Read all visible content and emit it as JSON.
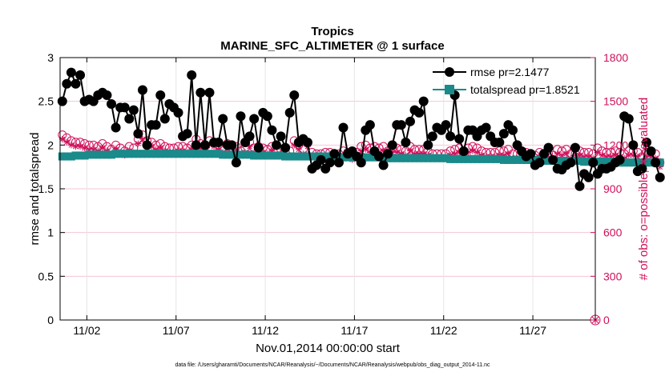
{
  "chart_data": {
    "type": "line",
    "title": "Tropics",
    "subtitle": "MARINE_SFC_ALTIMETER @ 1 surface",
    "xlabel": "Nov.01,2014 00:00:00 start",
    "ylabel": "rmse and totalspread",
    "y2label": "# of obs: o=possible; ∗=evaluated",
    "footer": "data file: /Users/gharamti/Documents/NCAR/Reanalysis/~/Documents/NCAR/Reanalysis/webpub/obs_diag_output_2014-11.nc",
    "xlim": [
      0.5,
      30.5
    ],
    "ylim": [
      0,
      3
    ],
    "y2lim": [
      0,
      1800
    ],
    "xticks": [
      2,
      7,
      12,
      17,
      22,
      27
    ],
    "xtick_labels": [
      "11/02",
      "11/07",
      "11/12",
      "11/17",
      "11/22",
      "11/27"
    ],
    "yticks": [
      0,
      0.5,
      1,
      1.5,
      2,
      2.5,
      3
    ],
    "ytick_labels": [
      "0",
      "0.5",
      "1",
      "1.5",
      "2",
      "2.5",
      "3"
    ],
    "y2ticks": [
      0,
      300,
      600,
      900,
      1200,
      1500,
      1800
    ],
    "y2tick_labels": [
      "0",
      "300",
      "600",
      "900",
      "1200",
      "1500",
      "1800"
    ],
    "legend_position": "top-right",
    "legend": [
      "rmse pr=2.1477",
      "totalspread pr=1.8521"
    ],
    "series": [
      {
        "name": "rmse pr=2.1477",
        "color": "#000000",
        "marker": "circle",
        "x_start": 0.625,
        "x_step": 0.25,
        "values": [
          2.5,
          2.7,
          2.83,
          2.7,
          2.8,
          2.5,
          2.52,
          2.5,
          2.57,
          2.6,
          2.57,
          2.47,
          2.2,
          2.43,
          2.43,
          2.3,
          2.4,
          2.13,
          2.63,
          2.0,
          2.23,
          2.23,
          2.57,
          2.3,
          2.47,
          2.43,
          2.37,
          2.1,
          2.13,
          2.8,
          2.0,
          2.6,
          2.0,
          2.6,
          2.03,
          2.03,
          2.3,
          2.0,
          2.0,
          1.8,
          2.33,
          2.03,
          2.1,
          2.3,
          1.97,
          2.37,
          2.33,
          2.17,
          2.0,
          2.1,
          1.97,
          2.37,
          2.57,
          2.03,
          2.07,
          2.03,
          1.73,
          1.77,
          1.83,
          1.73,
          1.8,
          1.9,
          1.8,
          2.2,
          1.9,
          1.93,
          1.87,
          1.8,
          2.17,
          2.23,
          1.93,
          1.87,
          1.77,
          1.9,
          2.0,
          2.23,
          2.23,
          2.03,
          2.27,
          2.4,
          2.37,
          2.5,
          2.0,
          2.1,
          2.2,
          2.17,
          2.23,
          2.1,
          2.57,
          2.07,
          1.93,
          2.17,
          2.17,
          2.1,
          2.17,
          2.2,
          2.1,
          2.03,
          2.03,
          2.13,
          2.23,
          2.17,
          2.0,
          1.93,
          1.87,
          1.9,
          1.77,
          1.8,
          1.9,
          1.97,
          1.83,
          1.73,
          1.72,
          1.77,
          1.8,
          1.97,
          1.53,
          1.67,
          1.63,
          1.8,
          1.67,
          1.73,
          1.73,
          1.75,
          1.8,
          1.83,
          2.33,
          2.3,
          2.0,
          1.7,
          1.73,
          2.03,
          1.93,
          1.8,
          1.63
        ]
      },
      {
        "name": "totalspread pr=1.8521",
        "color": "#1a8a8a",
        "marker": "square",
        "x_start": 0.625,
        "x_step": 0.25,
        "values": [
          1.87,
          1.87,
          1.87,
          1.88,
          1.88,
          1.88,
          1.89,
          1.89,
          1.89,
          1.89,
          1.89,
          1.89,
          1.9,
          1.9,
          1.9,
          1.9,
          1.9,
          1.9,
          1.9,
          1.9,
          1.9,
          1.9,
          1.9,
          1.9,
          1.9,
          1.9,
          1.9,
          1.9,
          1.9,
          1.9,
          1.9,
          1.9,
          1.9,
          1.9,
          1.9,
          1.9,
          1.89,
          1.89,
          1.89,
          1.89,
          1.89,
          1.89,
          1.89,
          1.88,
          1.88,
          1.88,
          1.88,
          1.88,
          1.88,
          1.88,
          1.87,
          1.87,
          1.87,
          1.87,
          1.87,
          1.87,
          1.87,
          1.87,
          1.87,
          1.87,
          1.87,
          1.86,
          1.86,
          1.86,
          1.86,
          1.86,
          1.86,
          1.86,
          1.86,
          1.86,
          1.86,
          1.86,
          1.85,
          1.85,
          1.85,
          1.85,
          1.85,
          1.85,
          1.85,
          1.85,
          1.85,
          1.85,
          1.85,
          1.85,
          1.85,
          1.85,
          1.85,
          1.84,
          1.84,
          1.84,
          1.84,
          1.84,
          1.84,
          1.84,
          1.84,
          1.84,
          1.84,
          1.84,
          1.84,
          1.83,
          1.83,
          1.83,
          1.83,
          1.83,
          1.83,
          1.83,
          1.83,
          1.83,
          1.82,
          1.82,
          1.82,
          1.82,
          1.82,
          1.82,
          1.82,
          1.82,
          1.82,
          1.81,
          1.81,
          1.81,
          1.81,
          1.81,
          1.81,
          1.81,
          1.81,
          1.8,
          1.8,
          1.8,
          1.8,
          1.8,
          1.8,
          1.8,
          1.8,
          1.8,
          1.8
        ]
      },
      {
        "name": "obs possible",
        "axis": "right",
        "color": "#d0105a",
        "marker": "circle-open",
        "x_start": 0.625,
        "x_step": 0.25,
        "values": [
          1270,
          1250,
          1230,
          1220,
          1220,
          1210,
          1200,
          1200,
          1190,
          1210,
          1190,
          1170,
          1200,
          1180,
          1160,
          1190,
          1180,
          1240,
          1270,
          1230,
          1220,
          1200,
          1210,
          1190,
          1180,
          1180,
          1190,
          1190,
          1180,
          1200,
          1240,
          1210,
          1190,
          1230,
          1220,
          1200,
          1180,
          1210,
          1180,
          1190,
          1160,
          1180,
          1220,
          1180,
          1190,
          1180,
          1170,
          1190,
          1160,
          1170,
          1150,
          1160,
          1230,
          1200,
          1170,
          1220,
          1150,
          1140,
          1140,
          1150,
          1150,
          1130,
          1140,
          1160,
          1150,
          1130,
          1150,
          1190,
          1200,
          1180,
          1190,
          1180,
          1190,
          1160,
          1180,
          1180,
          1170,
          1160,
          1190,
          1170,
          1170,
          1170,
          1160,
          1140,
          1140,
          1140,
          1140,
          1160,
          1170,
          1180,
          1150,
          1180,
          1190,
          1180,
          1160,
          1150,
          1150,
          1150,
          1160,
          1160,
          1170,
          1140,
          1140,
          1160,
          1150,
          1140,
          1130,
          1150,
          1140,
          1140,
          1130,
          1170,
          1160,
          1170,
          1140,
          1140,
          1160,
          1150,
          1150,
          1140,
          1180,
          1160,
          1150,
          1150,
          1160,
          1150,
          1140,
          1160,
          1160,
          1150,
          1120,
          1150,
          1150,
          1140,
          1080
        ]
      },
      {
        "name": "obs evaluated",
        "axis": "right",
        "color": "#d0105a",
        "marker": "asterisk",
        "x_start": 0.625,
        "x_step": 0.25,
        "values": [
          1240,
          1220,
          1200,
          1190,
          1190,
          1180,
          1170,
          1170,
          1160,
          1180,
          1160,
          1140,
          1170,
          1150,
          1130,
          1160,
          1150,
          1210,
          1240,
          1200,
          1190,
          1170,
          1180,
          1160,
          1150,
          1150,
          1160,
          1160,
          1150,
          1170,
          1210,
          1180,
          1160,
          1200,
          1190,
          1170,
          1150,
          1180,
          1150,
          1160,
          1130,
          1150,
          1190,
          1150,
          1160,
          1150,
          1140,
          1160,
          1130,
          1140,
          1120,
          1130,
          1200,
          1170,
          1140,
          1190,
          1120,
          1110,
          1110,
          1120,
          1120,
          1100,
          1110,
          1130,
          1120,
          1100,
          1120,
          1160,
          1170,
          1150,
          1160,
          1150,
          1160,
          1130,
          1150,
          1150,
          1140,
          1130,
          1160,
          1140,
          1140,
          1140,
          1130,
          1110,
          1110,
          1110,
          1110,
          1130,
          1140,
          1150,
          1120,
          1150,
          1160,
          1150,
          1130,
          1120,
          1120,
          1120,
          1130,
          1130,
          1140,
          1110,
          1110,
          1130,
          1120,
          1110,
          1100,
          1120,
          1110,
          1110,
          1100,
          1140,
          1130,
          1140,
          1110,
          1110,
          1130,
          1120,
          1120,
          1110,
          1150,
          1130,
          1120,
          1120,
          1130,
          1120,
          1110,
          1130,
          1130,
          1120,
          1090,
          1120,
          1120,
          1110,
          1050
        ]
      }
    ],
    "extra_points": [
      {
        "series": "obs possible",
        "x": 30.5,
        "y2": 0
      },
      {
        "series": "obs evaluated",
        "x": 30.5,
        "y2": 0
      }
    ]
  }
}
